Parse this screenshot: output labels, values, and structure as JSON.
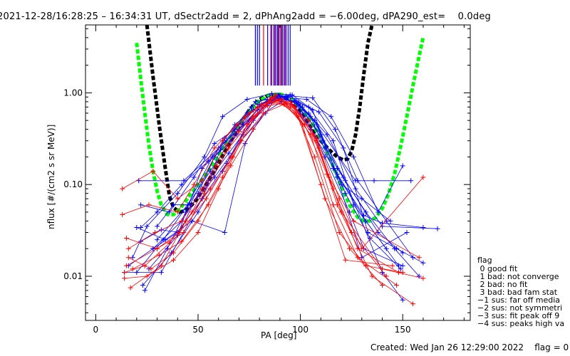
{
  "header": {
    "title": "2021-12-28/16:28:25 – 16:34:31 UT, dSectr2add = 2, dPhAng2add = −6.00deg, dPA290_est=    0.0deg"
  },
  "legend": {
    "title": "flag",
    "entries": [
      " 0 good fit",
      " 1 bad: not converge",
      " 2 bad: no fit",
      " 3 bad: bad fam stat",
      "−1 sus: far off media",
      "−2 sus: not symmetri",
      "−3 sus: fit peak off 9",
      "−4 sus: peaks high va"
    ]
  },
  "footer": {
    "text": "Created: Wed Jan 26 12:29:00 2022    flag = 0"
  },
  "colors": {
    "blue_series": "#0000ff",
    "red_series": "#ff0000",
    "black_fit": "#000000",
    "green_fit": "#00ff00",
    "axes": "#000000"
  },
  "chart_data": {
    "type": "line",
    "title": "2021-12-28/16:28:25 – 16:34:31 UT, dSectr2add = 2, dPhAng2add = −6.00deg, dPA290_est=    0.0deg",
    "xlabel": "PA [deg]",
    "ylabel": "nflux [#/(cm2 s sr MeV)]",
    "xlim": [
      -5,
      183
    ],
    "ylim": [
      0.0033,
      5.5
    ],
    "yscale": "log",
    "x_ticks": [
      0,
      50,
      100,
      150
    ],
    "x_tick_labels": [
      "0",
      "50",
      "100",
      "150"
    ],
    "y_ticks": [
      0.01,
      0.1,
      1.0
    ],
    "y_tick_labels": [
      "0.01",
      "0.10",
      "1.00"
    ],
    "fit_curves": [
      {
        "color": "black",
        "style": "thick dashed",
        "x": [
          25,
          28,
          31,
          34,
          36,
          38,
          41,
          44,
          47,
          50,
          55,
          60,
          65,
          70,
          75,
          80,
          85,
          90,
          95,
          100,
          105,
          110,
          114,
          118,
          121,
          123,
          125,
          127,
          129,
          131,
          133,
          135
        ],
        "y": [
          5.5,
          1.5,
          0.45,
          0.15,
          0.075,
          0.056,
          0.05,
          0.052,
          0.06,
          0.072,
          0.11,
          0.17,
          0.27,
          0.43,
          0.65,
          0.85,
          0.95,
          0.95,
          0.85,
          0.65,
          0.43,
          0.3,
          0.24,
          0.2,
          0.185,
          0.19,
          0.23,
          0.35,
          0.7,
          1.6,
          3.5,
          5.5
        ]
      },
      {
        "color": "green",
        "style": "thick dashed",
        "x": [
          20,
          22,
          24,
          26,
          28,
          30,
          32,
          35,
          38,
          41,
          44,
          47,
          50,
          55,
          60,
          65,
          70,
          75,
          80,
          85,
          90,
          95,
          100,
          105,
          110,
          115,
          120,
          124,
          128,
          131,
          134,
          137,
          140,
          143,
          146,
          149,
          152,
          155,
          158,
          160
        ],
        "y": [
          3.5,
          1.4,
          0.6,
          0.27,
          0.14,
          0.085,
          0.06,
          0.047,
          0.047,
          0.054,
          0.066,
          0.082,
          0.1,
          0.14,
          0.21,
          0.31,
          0.45,
          0.63,
          0.82,
          0.95,
          0.97,
          0.88,
          0.7,
          0.5,
          0.32,
          0.18,
          0.095,
          0.06,
          0.044,
          0.04,
          0.04,
          0.044,
          0.055,
          0.078,
          0.13,
          0.26,
          0.55,
          1.2,
          2.5,
          4.0
        ]
      }
    ],
    "marker_lines": {
      "y_range": [
        1.2,
        5.5
      ],
      "blue_x": [
        78,
        79,
        80,
        84,
        86,
        87,
        88,
        88.8,
        89.6,
        90.4,
        91.2,
        92,
        93,
        94,
        95
      ],
      "red_x": [
        82,
        85.5,
        87.5,
        89.2,
        90.8,
        92.5
      ]
    },
    "series": [
      {
        "color": "blue",
        "x": [
          14,
          32,
          52,
          63,
          76,
          86,
          93,
          105,
          118,
          131,
          140,
          160
        ],
        "y": [
          0.011,
          0.011,
          0.07,
          0.32,
          0.7,
          0.95,
          0.92,
          0.4,
          0.13,
          0.046,
          0.038,
          0.034
        ]
      },
      {
        "color": "blue",
        "x": [
          22,
          30,
          42,
          55,
          68,
          80,
          88,
          97,
          110,
          122,
          140,
          150
        ],
        "y": [
          0.034,
          0.05,
          0.1,
          0.18,
          0.4,
          0.75,
          0.9,
          0.8,
          0.35,
          0.11,
          0.011,
          0.0055
        ]
      },
      {
        "color": "blue",
        "x": [
          18,
          25,
          40,
          53,
          62,
          74,
          86,
          96,
          104,
          116,
          126,
          142
        ],
        "y": [
          0.016,
          0.035,
          0.08,
          0.2,
          0.55,
          0.85,
          0.98,
          0.95,
          0.7,
          0.3,
          0.06,
          0.02
        ]
      },
      {
        "color": "blue",
        "x": [
          24,
          35,
          44,
          58,
          71,
          83,
          89,
          99,
          112,
          124,
          131,
          150
        ],
        "y": [
          0.007,
          0.02,
          0.05,
          0.12,
          0.3,
          0.6,
          0.95,
          0.75,
          0.2,
          0.05,
          0.02,
          0.013
        ]
      },
      {
        "color": "blue",
        "x": [
          22,
          32,
          41,
          50,
          60,
          72,
          84,
          93,
          100,
          112,
          121,
          138,
          150
        ],
        "y": [
          0.024,
          0.032,
          0.03,
          0.08,
          0.25,
          0.45,
          0.85,
          0.9,
          0.6,
          0.25,
          0.12,
          0.03,
          0.018
        ]
      },
      {
        "color": "blue",
        "x": [
          30,
          38,
          46,
          58,
          69,
          79,
          90,
          98,
          108,
          118,
          132,
          146,
          158
        ],
        "y": [
          0.035,
          0.06,
          0.06,
          0.2,
          0.35,
          0.65,
          0.85,
          0.8,
          0.45,
          0.15,
          0.05,
          0.02,
          0.01
        ]
      },
      {
        "color": "blue",
        "x": [
          20,
          34,
          47,
          63,
          73,
          82,
          91,
          101,
          113,
          127,
          140,
          167
        ],
        "y": [
          0.034,
          0.025,
          0.04,
          0.03,
          0.28,
          0.6,
          0.8,
          0.7,
          0.35,
          0.09,
          0.035,
          0.033
        ]
      },
      {
        "color": "blue",
        "x": [
          26,
          40,
          52,
          61,
          74,
          84,
          94,
          103,
          115,
          126,
          138,
          150
        ],
        "y": [
          0.012,
          0.028,
          0.15,
          0.24,
          0.6,
          0.8,
          0.88,
          0.85,
          0.55,
          0.2,
          0.05,
          0.16
        ]
      },
      {
        "color": "blue",
        "x": [
          22,
          36,
          48,
          58,
          68,
          78,
          88,
          97,
          107,
          120,
          130,
          144
        ],
        "y": [
          0.06,
          0.05,
          0.12,
          0.28,
          0.4,
          0.8,
          0.88,
          0.82,
          0.5,
          0.1,
          0.07,
          0.04
        ]
      },
      {
        "color": "blue",
        "x": [
          28,
          42,
          55,
          65,
          77,
          87,
          96,
          106,
          117,
          128,
          142,
          155
        ],
        "y": [
          0.02,
          0.04,
          0.11,
          0.22,
          0.5,
          0.85,
          0.92,
          0.88,
          0.4,
          0.11,
          0.04,
          0.016
        ]
      },
      {
        "color": "blue",
        "x": [
          16,
          28,
          40,
          52,
          64,
          75,
          86,
          95,
          105,
          116,
          132,
          148
        ],
        "y": [
          0.013,
          0.02,
          0.03,
          0.07,
          0.17,
          0.5,
          0.85,
          0.95,
          0.55,
          0.15,
          0.04,
          0.013
        ]
      },
      {
        "color": "blue",
        "x": [
          30,
          45,
          57,
          68,
          79,
          89,
          99,
          109,
          121,
          133,
          147,
          160
        ],
        "y": [
          0.025,
          0.06,
          0.2,
          0.45,
          0.7,
          0.92,
          0.78,
          0.62,
          0.25,
          0.03,
          0.02,
          0.014
        ]
      },
      {
        "color": "blue",
        "x": [
          20,
          33,
          45,
          56,
          66,
          77,
          86,
          95,
          106,
          118,
          130,
          152
        ],
        "y": [
          0.011,
          0.025,
          0.06,
          0.14,
          0.3,
          0.65,
          0.9,
          0.92,
          0.65,
          0.12,
          0.016,
          0.03
        ]
      },
      {
        "color": "blue",
        "x": [
          23,
          37,
          50,
          62,
          72,
          82,
          90,
          100,
          111,
          122,
          134,
          149
        ],
        "y": [
          0.008,
          0.018,
          0.05,
          0.14,
          0.35,
          0.7,
          0.93,
          0.72,
          0.3,
          0.08,
          0.026,
          0.012
        ]
      },
      {
        "color": "blue",
        "x": [
          21,
          43,
          70,
          88,
          104,
          127,
          136,
          154
        ],
        "y": [
          0.11,
          0.11,
          0.4,
          0.9,
          0.6,
          0.11,
          0.11,
          0.11
        ]
      },
      {
        "color": "red",
        "x": [
          13,
          28,
          40,
          52,
          62,
          73,
          85,
          95,
          105,
          116,
          128,
          147
        ],
        "y": [
          0.09,
          0.14,
          0.07,
          0.11,
          0.3,
          0.55,
          0.8,
          0.7,
          0.35,
          0.06,
          0.016,
          0.008
        ]
      },
      {
        "color": "red",
        "x": [
          15,
          30,
          43,
          53,
          65,
          76,
          86,
          96,
          107,
          119,
          132,
          150
        ],
        "y": [
          0.013,
          0.02,
          0.03,
          0.08,
          0.25,
          0.5,
          0.9,
          0.75,
          0.2,
          0.03,
          0.013,
          0.011
        ]
      },
      {
        "color": "red",
        "x": [
          16,
          27,
          38,
          50,
          62,
          74,
          84,
          93,
          104,
          114,
          126,
          158
        ],
        "y": [
          0.016,
          0.012,
          0.018,
          0.04,
          0.12,
          0.45,
          0.72,
          0.78,
          0.5,
          0.12,
          0.04,
          0.016
        ]
      },
      {
        "color": "red",
        "x": [
          14,
          24,
          36,
          47,
          59,
          70,
          81,
          91,
          101,
          112,
          124,
          140
        ],
        "y": [
          0.011,
          0.013,
          0.023,
          0.05,
          0.16,
          0.38,
          0.75,
          0.85,
          0.45,
          0.07,
          0.02,
          0.008
        ]
      },
      {
        "color": "red",
        "x": [
          17,
          32,
          44,
          56,
          67,
          78,
          88,
          98,
          109,
          118,
          135,
          155
        ],
        "y": [
          0.0075,
          0.013,
          0.04,
          0.09,
          0.2,
          0.55,
          0.95,
          0.6,
          0.25,
          0.06,
          0.01,
          0.005
        ]
      },
      {
        "color": "red",
        "x": [
          13,
          26,
          40,
          48,
          58,
          69,
          79,
          89,
          99,
          110,
          122,
          145
        ],
        "y": [
          0.047,
          0.06,
          0.05,
          0.1,
          0.25,
          0.45,
          0.7,
          0.82,
          0.55,
          0.1,
          0.015,
          0.013
        ]
      },
      {
        "color": "red",
        "x": [
          16,
          29,
          42,
          52,
          64,
          75,
          85,
          95,
          106,
          116,
          128,
          148
        ],
        "y": [
          0.02,
          0.03,
          0.04,
          0.09,
          0.27,
          0.6,
          0.85,
          0.8,
          0.35,
          0.09,
          0.02,
          0.011
        ]
      },
      {
        "color": "red",
        "x": [
          15,
          30,
          41,
          54,
          66,
          77,
          87,
          97,
          108,
          120,
          140,
          160
        ],
        "y": [
          0.026,
          0.02,
          0.03,
          0.07,
          0.2,
          0.55,
          0.88,
          0.7,
          0.3,
          0.05,
          0.012,
          0.0095
        ]
      },
      {
        "color": "red",
        "x": [
          18,
          31,
          42,
          55,
          66,
          77,
          87,
          97,
          108,
          119,
          130,
          160
        ],
        "y": [
          0.012,
          0.017,
          0.024,
          0.06,
          0.16,
          0.4,
          0.8,
          0.72,
          0.32,
          0.07,
          0.02,
          0.12
        ]
      },
      {
        "color": "red",
        "x": [
          14,
          25,
          38,
          50,
          60,
          71,
          82,
          92,
          102,
          113,
          125,
          142
        ],
        "y": [
          0.0095,
          0.01,
          0.015,
          0.03,
          0.09,
          0.3,
          0.6,
          0.75,
          0.45,
          0.13,
          0.03,
          0.01
        ]
      }
    ]
  }
}
